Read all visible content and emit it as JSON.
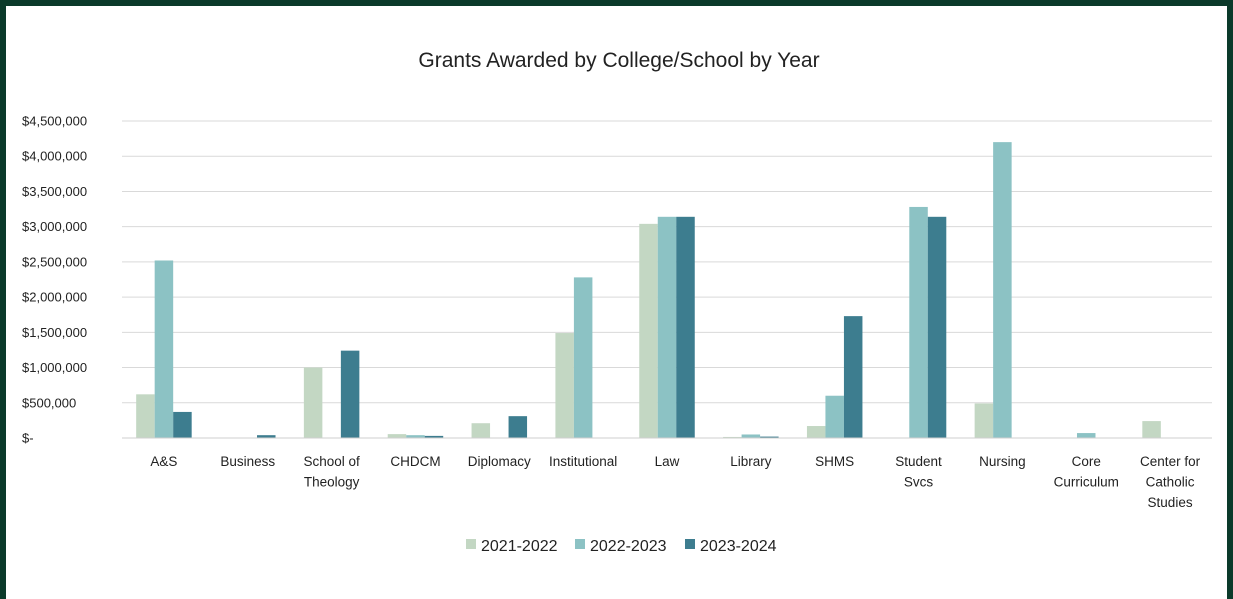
{
  "chart_data": {
    "type": "bar",
    "title": "Grants Awarded by College/School by Year",
    "xlabel": "",
    "ylabel": "",
    "ylim": [
      0,
      4500000
    ],
    "y_ticks": [
      {
        "value": 0,
        "label": "$-"
      },
      {
        "value": 500000,
        "label": "$500,000"
      },
      {
        "value": 1000000,
        "label": "$1,000,000"
      },
      {
        "value": 1500000,
        "label": "$1,500,000"
      },
      {
        "value": 2000000,
        "label": "$2,000,000"
      },
      {
        "value": 2500000,
        "label": "$2,500,000"
      },
      {
        "value": 3000000,
        "label": "$3,000,000"
      },
      {
        "value": 3500000,
        "label": "$3,500,000"
      },
      {
        "value": 4000000,
        "label": "$4,000,000"
      },
      {
        "value": 4500000,
        "label": "$4,500,000"
      }
    ],
    "categories": [
      [
        "A&S"
      ],
      [
        "Business"
      ],
      [
        "School of",
        "Theology"
      ],
      [
        "CHDCM"
      ],
      [
        "Diplomacy"
      ],
      [
        "Institutional"
      ],
      [
        "Law"
      ],
      [
        "Library"
      ],
      [
        "SHMS"
      ],
      [
        "Student",
        "Svcs"
      ],
      [
        "Nursing"
      ],
      [
        "Core",
        "Curriculum"
      ],
      [
        "Center for",
        "Catholic",
        "Studies"
      ]
    ],
    "series": [
      {
        "name": "2021-2022",
        "color": "#c3d7c3",
        "values": [
          620000,
          0,
          1000000,
          55000,
          210000,
          1490000,
          3040000,
          15000,
          170000,
          0,
          490000,
          0,
          240000
        ]
      },
      {
        "name": "2022-2023",
        "color": "#8cc2c4",
        "values": [
          2520000,
          0,
          0,
          40000,
          0,
          2280000,
          3140000,
          50000,
          600000,
          3280000,
          4200000,
          70000,
          0
        ]
      },
      {
        "name": "2023-2024",
        "color": "#3d7d8f",
        "values": [
          370000,
          40000,
          1240000,
          30000,
          310000,
          0,
          3140000,
          20000,
          1730000,
          3140000,
          0,
          0,
          0
        ]
      }
    ],
    "grid": true,
    "legend_position": "bottom"
  }
}
